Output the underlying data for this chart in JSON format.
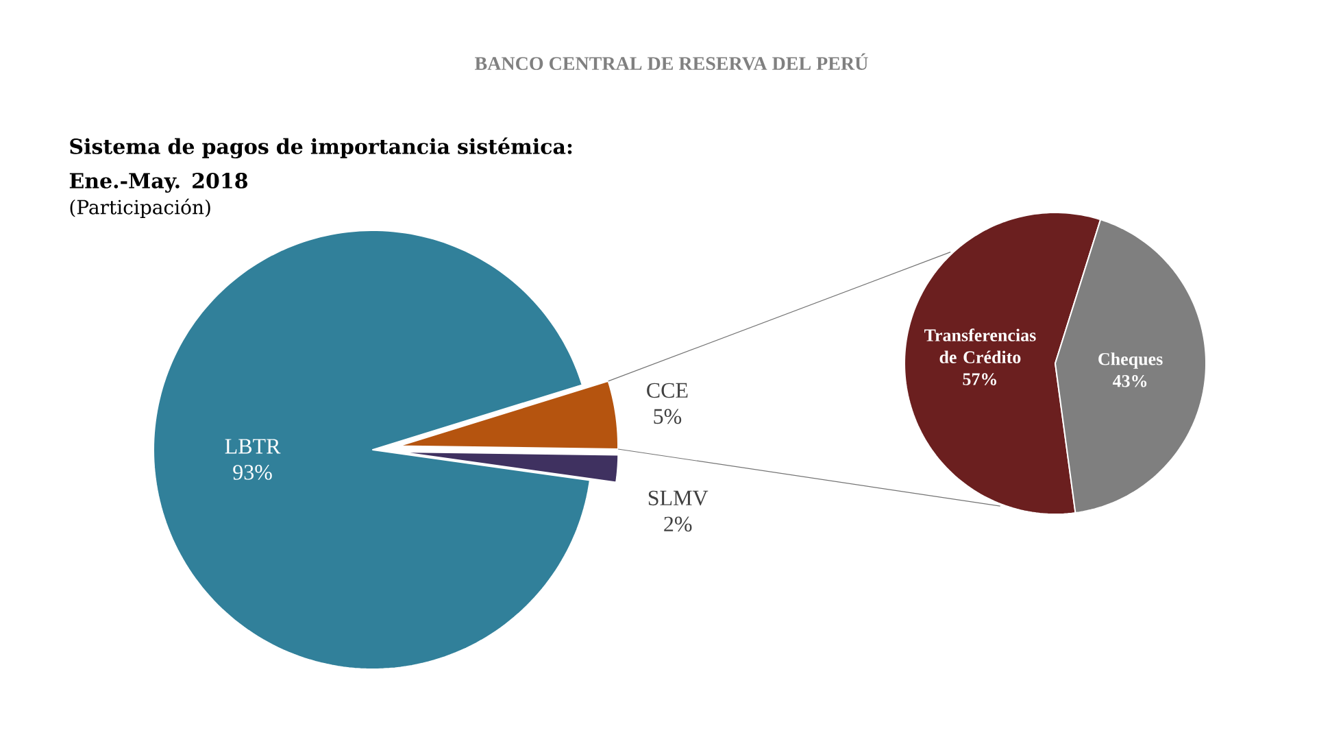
{
  "chart_data": [
    {
      "type": "pie",
      "title": "Sistema de pagos de importancia sistémica: Ene.-May. 2018",
      "subtitle": "(Participación)",
      "annotations": [
        "BANCO CENTRAL DE RESERVA DEL PERÚ"
      ],
      "categories": [
        "LBTR",
        "CCE",
        "SLMV"
      ],
      "values": [
        93,
        5,
        2
      ],
      "value_labels": [
        "93%",
        "5%",
        "2%"
      ],
      "colors": [
        "#31809a",
        "#b5540f",
        "#3f3160"
      ]
    },
    {
      "type": "pie",
      "categories": [
        "Transferencias de Crédito",
        "Cheques"
      ],
      "values": [
        57,
        43
      ],
      "value_labels": [
        "57%",
        "43%"
      ],
      "colors": [
        "#6b1f1f",
        "#7f7f7f"
      ]
    }
  ]
}
